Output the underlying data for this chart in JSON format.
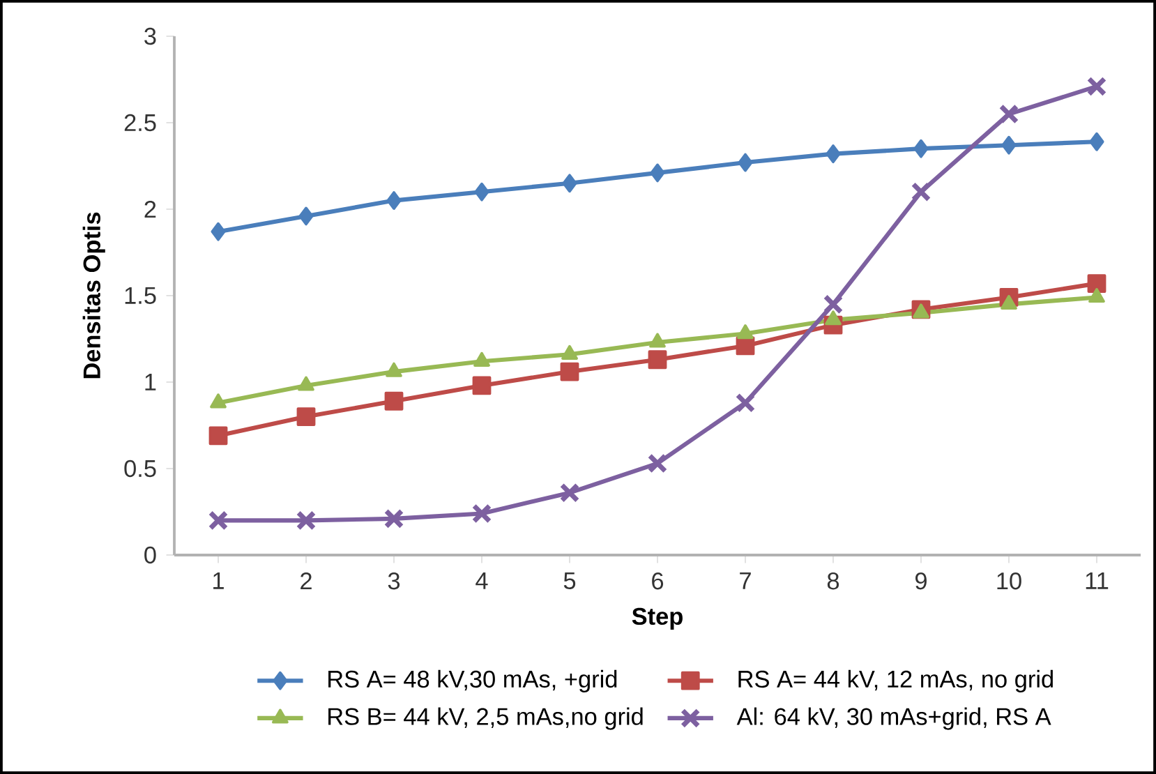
{
  "chart_data": {
    "type": "line",
    "xlabel": "Step",
    "ylabel": "Densitas Optis",
    "x": [
      1,
      2,
      3,
      4,
      5,
      6,
      7,
      8,
      9,
      10,
      11
    ],
    "xlim": [
      0.5,
      11.5
    ],
    "xticks": [
      1,
      2,
      3,
      4,
      5,
      6,
      7,
      8,
      9,
      10,
      11
    ],
    "ylim": [
      0,
      3
    ],
    "yticks": [
      0,
      0.5,
      1,
      1.5,
      2,
      2.5,
      3
    ],
    "grid": false,
    "legend": "bottom",
    "series": [
      {
        "name": "RS A= 48 kV,30 mAs, +grid",
        "color": "#4a7ebb",
        "marker": "diamond",
        "values": [
          1.87,
          1.96,
          2.05,
          2.1,
          2.15,
          2.21,
          2.27,
          2.32,
          2.35,
          2.37,
          2.39
        ]
      },
      {
        "name": "RS A= 44 kV, 12 mAs, no grid",
        "color": "#be4b48",
        "marker": "square",
        "values": [
          0.69,
          0.8,
          0.89,
          0.98,
          1.06,
          1.13,
          1.21,
          1.33,
          1.42,
          1.49,
          1.57
        ]
      },
      {
        "name": "RS B= 44 kV, 2,5 mAs,no grid",
        "color": "#98b954",
        "marker": "triangle",
        "values": [
          0.88,
          0.98,
          1.06,
          1.12,
          1.16,
          1.23,
          1.28,
          1.36,
          1.4,
          1.45,
          1.49
        ]
      },
      {
        "name": "Al: 64 kV, 30 mAs+grid, RS A",
        "color": "#7d60a0",
        "marker": "cross",
        "values": [
          0.2,
          0.2,
          0.21,
          0.24,
          0.36,
          0.53,
          0.88,
          1.45,
          2.1,
          2.55,
          2.71
        ]
      }
    ]
  }
}
